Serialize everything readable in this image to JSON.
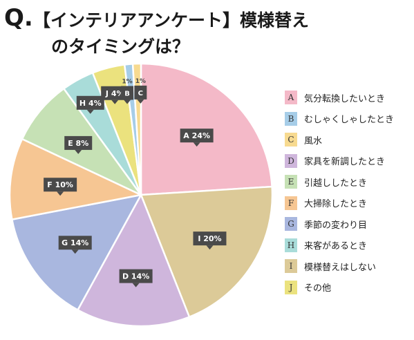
{
  "title": {
    "q": "Q.",
    "line1": "【インテリアアンケート】模様替え",
    "line2": "のタイミングは？"
  },
  "chart_data": {
    "type": "pie",
    "start": "12 o'clock",
    "direction": "clockwise",
    "slices": [
      {
        "id": "A",
        "pct": 24,
        "label": "A 24%",
        "name": "気分転換したいとき",
        "color": "#f4b9c8"
      },
      {
        "id": "I",
        "pct": 20,
        "label": "I 20%",
        "name": "模様替えはしない",
        "color": "#dcca98"
      },
      {
        "id": "D",
        "pct": 14,
        "label": "D 14%",
        "name": "家具を新調したとき",
        "color": "#cfb6dc"
      },
      {
        "id": "G",
        "pct": 14,
        "label": "G 14%",
        "name": "季節の変わり目",
        "color": "#a9b7df"
      },
      {
        "id": "F",
        "pct": 10,
        "label": "F 10%",
        "name": "大掃除したとき",
        "color": "#f6c693"
      },
      {
        "id": "E",
        "pct": 8,
        "label": "E 8%",
        "name": "引越ししたとき",
        "color": "#c6e1b5"
      },
      {
        "id": "H",
        "pct": 4,
        "label": "H 4%",
        "name": "来客があるとき",
        "color": "#a9dcd9"
      },
      {
        "id": "J",
        "pct": 4,
        "label": "J 4%",
        "name": "その他",
        "color": "#ebe27e"
      },
      {
        "id": "B",
        "pct": 1,
        "label": "B 1%",
        "name": "むしゃくしゃしたとき",
        "color": "#a6cde8"
      },
      {
        "id": "C",
        "pct": 1,
        "label": "C 1%",
        "name": "風水",
        "color": "#f7da90"
      }
    ],
    "legend": [
      {
        "id": "A",
        "name": "気分転換したいとき",
        "color": "#f4b9c8"
      },
      {
        "id": "B",
        "name": "むしゃくしゃしたとき",
        "color": "#a6cde8"
      },
      {
        "id": "C",
        "name": "風水",
        "color": "#f7da90"
      },
      {
        "id": "D",
        "name": "家具を新調したとき",
        "color": "#cfb6dc"
      },
      {
        "id": "E",
        "name": "引越ししたとき",
        "color": "#c6e1b5"
      },
      {
        "id": "F",
        "name": "大掃除したとき",
        "color": "#f6c693"
      },
      {
        "id": "G",
        "name": "季節の変わり目",
        "color": "#a9b7df"
      },
      {
        "id": "H",
        "name": "来客があるとき",
        "color": "#a9dcd9"
      },
      {
        "id": "I",
        "name": "模様替えはしない",
        "color": "#dcca98"
      },
      {
        "id": "J",
        "name": "その他",
        "color": "#ebe27e"
      }
    ],
    "legend_placement": "right"
  }
}
